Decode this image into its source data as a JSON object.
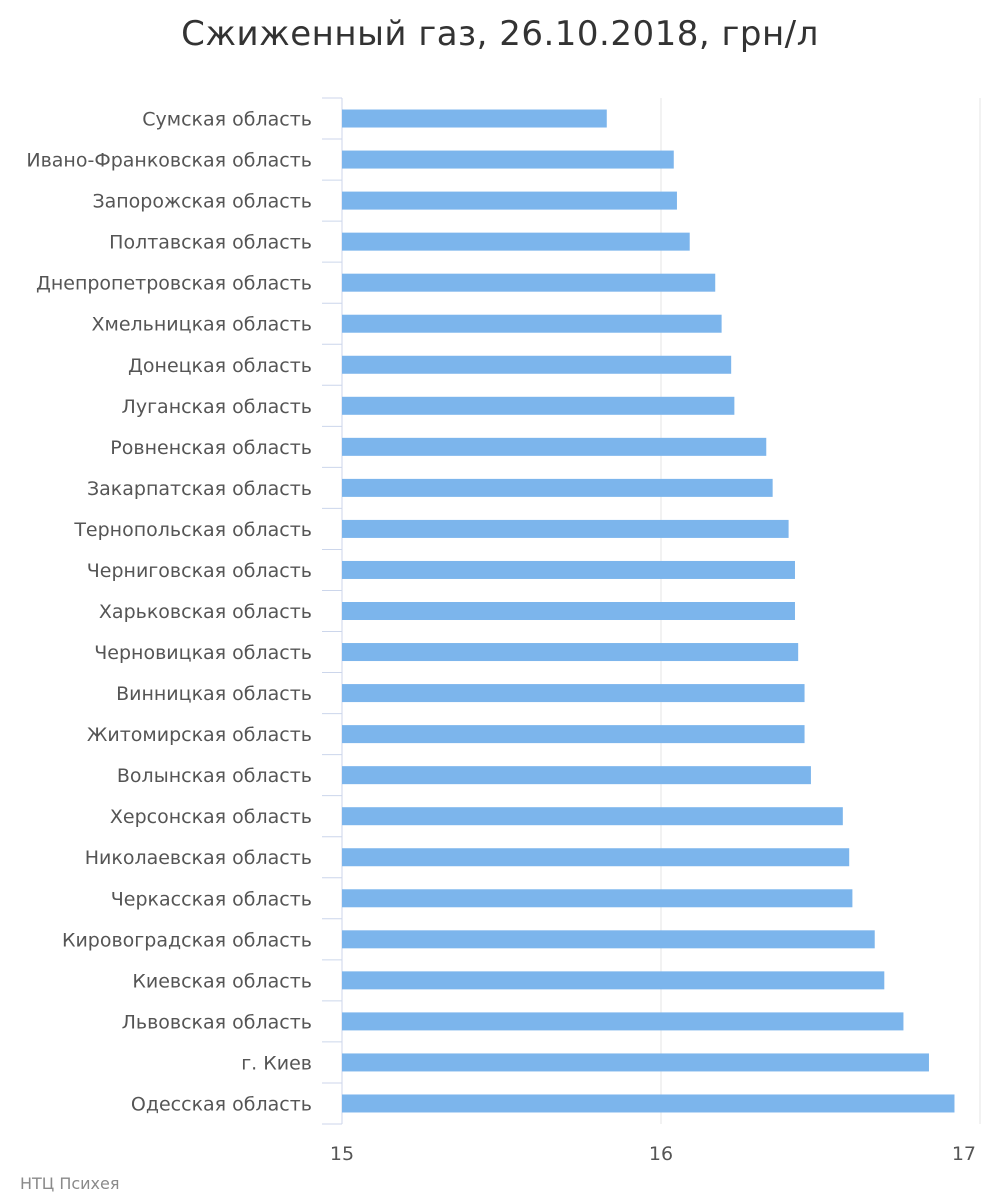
{
  "title": "Сжиженный газ, 26.10.2018, грн/л",
  "credit": "НТЦ Психея",
  "bar_color": "#7cb5ec",
  "grid_color": "#e6e6e6",
  "axis_color": "#ccd6eb",
  "chart_data": {
    "type": "bar",
    "orientation": "horizontal",
    "title": "Сжиженный газ, 26.10.2018, грн/л",
    "xlabel": "",
    "ylabel": "",
    "xlim": [
      15,
      17
    ],
    "ticks": [
      "15",
      "16",
      "17"
    ],
    "grid": true,
    "categories": [
      "Сумская область",
      "Ивано-Франковская область",
      "Запорожская область",
      "Полтавская область",
      "Днепропетровская область",
      "Хмельницкая область",
      "Донецкая область",
      "Луганская область",
      "Ровненская область",
      "Закарпатская область",
      "Тернопольская область",
      "Черниговская область",
      "Харьковская область",
      "Черновицкая область",
      "Винницкая область",
      "Житомирская область",
      "Волынская область",
      "Херсонская область",
      "Николаевская область",
      "Черкасская область",
      "Кировоградская область",
      "Киевская область",
      "Львовская область",
      "г. Киев",
      "Одесская область"
    ],
    "values": [
      15.83,
      16.04,
      16.05,
      16.09,
      16.17,
      16.19,
      16.22,
      16.23,
      16.33,
      16.35,
      16.4,
      16.42,
      16.42,
      16.43,
      16.45,
      16.45,
      16.47,
      16.57,
      16.59,
      16.6,
      16.67,
      16.7,
      16.76,
      16.84,
      16.92
    ]
  }
}
